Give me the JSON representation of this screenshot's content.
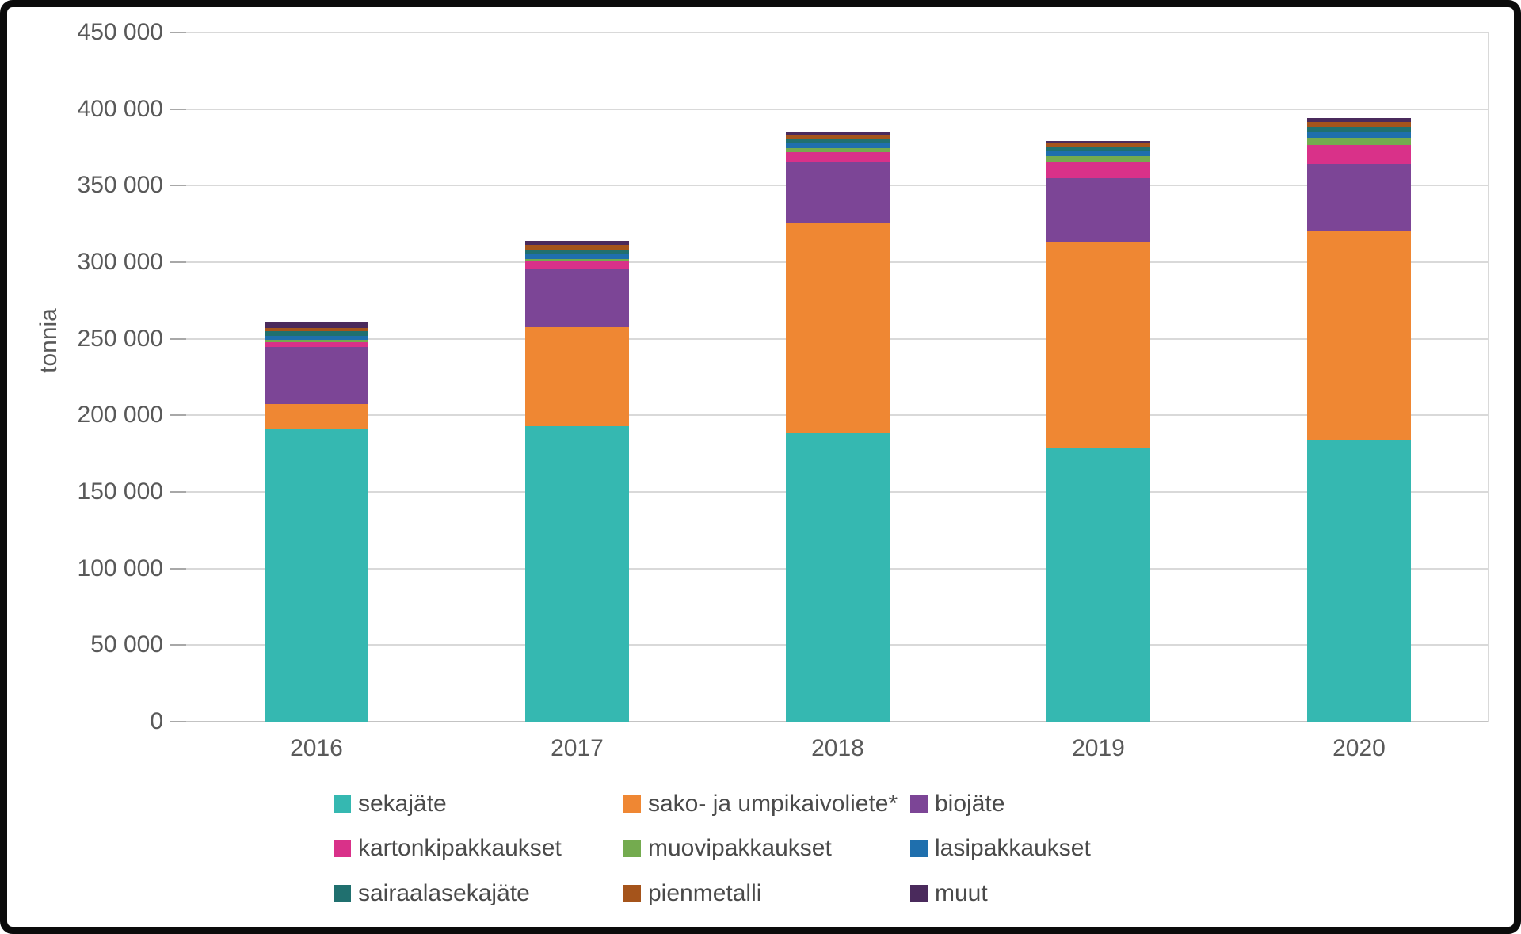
{
  "chart_data": {
    "type": "bar",
    "stacked": true,
    "title": "",
    "ylabel": "tonnia",
    "xlabel": "",
    "categories": [
      "2016",
      "2017",
      "2018",
      "2019",
      "2020"
    ],
    "series": [
      {
        "name": "sekajäte",
        "color": "#35b8b1",
        "values": [
          191300,
          192700,
          188400,
          178900,
          184400
        ]
      },
      {
        "name": "sako- ja umpikaivoliete*",
        "color": "#ef8733",
        "values": [
          16100,
          65000,
          137500,
          134500,
          135800
        ]
      },
      {
        "name": "biojäte",
        "color": "#7c4596",
        "values": [
          37400,
          38200,
          39900,
          41300,
          44200
        ]
      },
      {
        "name": "kartonkipakkaukset",
        "color": "#d93189",
        "values": [
          2800,
          4800,
          5900,
          10700,
          12400
        ]
      },
      {
        "name": "muovipakkaukset",
        "color": "#74ab4f",
        "values": [
          1600,
          1400,
          2600,
          4100,
          4300
        ]
      },
      {
        "name": "lasipakkaukset",
        "color": "#1f6fad",
        "values": [
          2900,
          2900,
          3300,
          3100,
          4100
        ]
      },
      {
        "name": "sairaalasekajäte",
        "color": "#20706f",
        "values": [
          2800,
          3100,
          2600,
          2400,
          3100
        ]
      },
      {
        "name": "pienmetalli",
        "color": "#a5541b",
        "values": [
          2200,
          3100,
          2400,
          2600,
          3100
        ]
      },
      {
        "name": "muut",
        "color": "#4a2a5c",
        "values": [
          4100,
          2600,
          2200,
          1600,
          2600
        ]
      }
    ],
    "totals": [
      261200,
      313800,
      384800,
      379200,
      394000
    ],
    "ylim": [
      0,
      450000
    ],
    "ytick_step": 50000,
    "ytick_labels": [
      "0",
      "50 000",
      "100 000",
      "150 000",
      "200 000",
      "250 000",
      "300 000",
      "350 000",
      "400 000",
      "450 000"
    ],
    "grid": true,
    "legend_position": "bottom",
    "legend_columns": 3
  },
  "colors": {
    "grid": "#d9d9d9",
    "axis_text": "#595959",
    "legend_text": "#4a4a4a",
    "frame": "#0b0b0b",
    "background": "#ffffff"
  }
}
